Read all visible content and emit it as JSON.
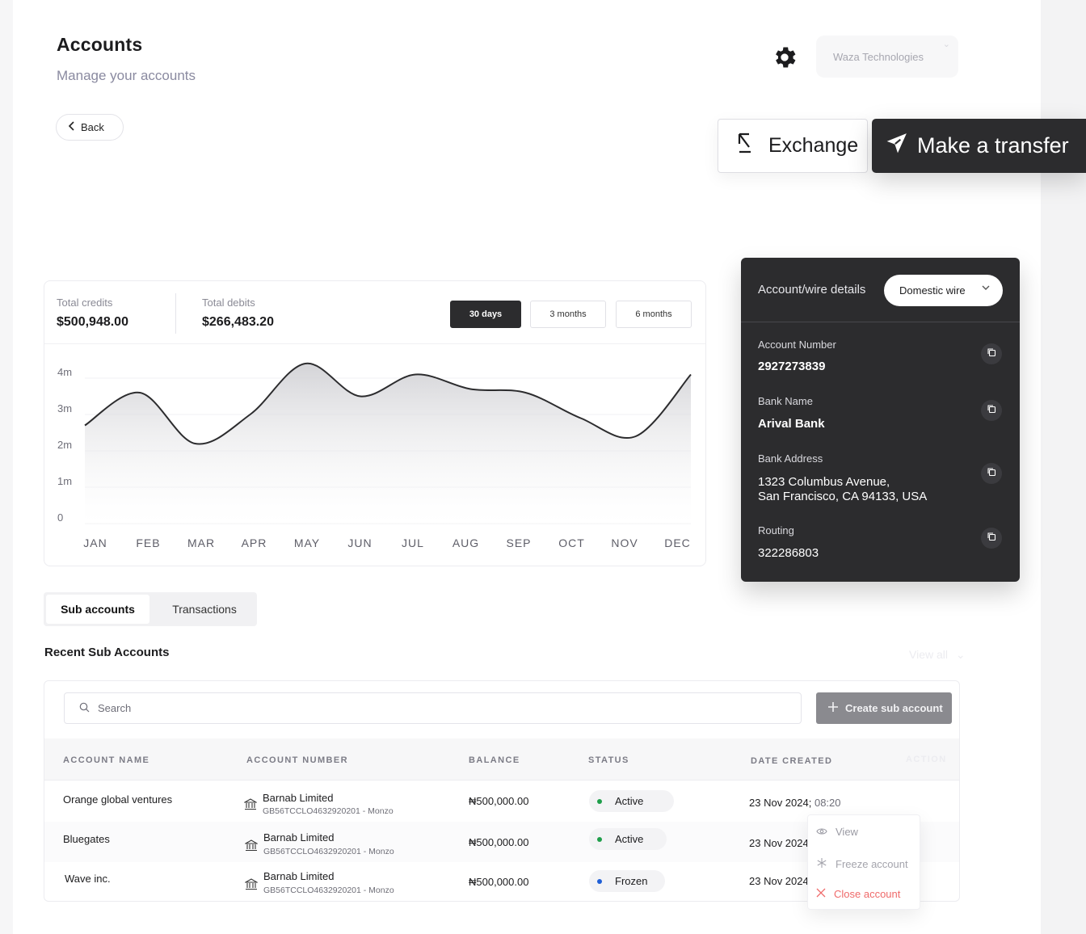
{
  "header": {
    "title": "Accounts",
    "subtitle": "Manage your accounts",
    "back_label": "Back",
    "org_name": "Waza Technologies"
  },
  "actions": {
    "exchange_label": "Exchange",
    "transfer_label": "Make a transfer"
  },
  "stats": {
    "credits_label": "Total credits",
    "credits_value": "$500,948.00",
    "debits_label": "Total debits",
    "debits_value": "$266,483.20"
  },
  "ranges": [
    "30 days",
    "3 months",
    "6 months"
  ],
  "active_range": "30 days",
  "chart_data": {
    "type": "area",
    "categories": [
      "JAN",
      "FEB",
      "MAR",
      "APR",
      "MAY",
      "JUN",
      "JUL",
      "AUG",
      "SEP",
      "OCT",
      "NOV",
      "DEC"
    ],
    "y_tick_labels": [
      "4m",
      "3m",
      "2m",
      "1m",
      "0"
    ],
    "ylim": [
      0,
      4
    ],
    "y_unit": "m",
    "series": [
      {
        "values": [
          2.7,
          3.6,
          2.2,
          3.0,
          4.4,
          3.5,
          4.1,
          3.7,
          3.6,
          2.9,
          2.4,
          4.1
        ]
      }
    ],
    "grid": true,
    "legend": "none"
  },
  "wire": {
    "heading": "Account/wire details",
    "type_selected": "Domestic wire",
    "fields": [
      {
        "label": "Account Number",
        "value": "2927273839"
      },
      {
        "label": "Bank Name",
        "value": "Arival Bank"
      },
      {
        "label": "Bank Address",
        "value_line1": "1323 Columbus Avenue,",
        "value_line2": "San Francisco, CA 94133, USA"
      },
      {
        "label": "Routing",
        "value": "322286803"
      }
    ]
  },
  "tabs": [
    "Sub accounts",
    "Transactions"
  ],
  "section": {
    "title": "Recent Sub Accounts",
    "view_all": "View all"
  },
  "table": {
    "search_placeholder": "Search",
    "create_label": "Create sub account",
    "headers": [
      "ACCOUNT NAME",
      "ACCOUNT NUMBER",
      "BALANCE",
      "STATUS",
      "DATE CREATED",
      "ACTION"
    ],
    "rows": [
      {
        "name": "Orange global ventures",
        "bank": "Barnab Limited",
        "iban": "GB56TCCLO4632920201 - Monzo",
        "balance": "₦500,000.00",
        "status": "Active",
        "date": "23 Nov 2024;",
        "time": "08:20"
      },
      {
        "name": "Bluegates",
        "bank": "Barnab Limited",
        "iban": "GB56TCCLO4632920201 - Monzo",
        "balance": "₦500,000.00",
        "status": "Active",
        "date": "23 Nov 2024"
      },
      {
        "name": "Wave inc.",
        "bank": "Barnab Limited",
        "iban": "GB56TCCLO4632920201 - Monzo",
        "balance": "₦500,000.00",
        "status": "Frozen",
        "date": "23 Nov 2024"
      }
    ]
  },
  "status_colors": {
    "Active": "#1e9e4a",
    "Frozen": "#1f5fd6"
  },
  "menu": {
    "view": "View",
    "freeze": "Freeze account",
    "close": "Close account",
    "close_color": "#ef6a6a"
  }
}
